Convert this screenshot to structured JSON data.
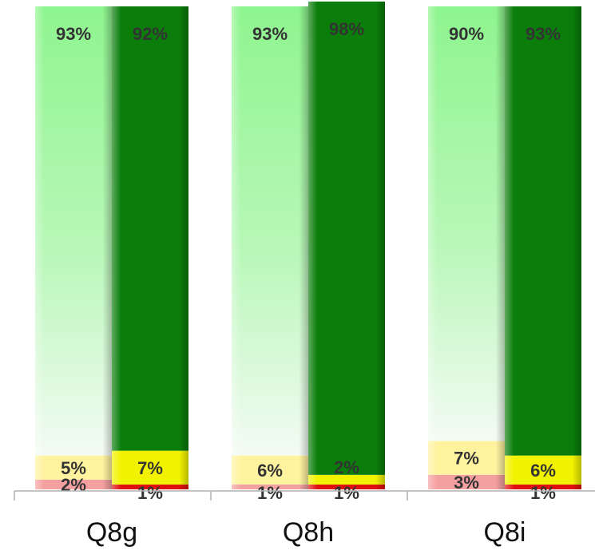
{
  "chart_data": {
    "type": "bar",
    "stacked": true,
    "percent_stacked": true,
    "categories": [
      "Q8g",
      "Q8h",
      "Q8i"
    ],
    "bars_per_category": 2,
    "series_order_bottom_to_top": [
      "low",
      "mid",
      "high"
    ],
    "bars": [
      {
        "category": "Q8g",
        "style": "light",
        "values": {
          "low": 2,
          "mid": 5,
          "high": 93
        },
        "labels": {
          "low": "2%",
          "mid": "5%",
          "high": "93%"
        }
      },
      {
        "category": "Q8g",
        "style": "dark",
        "values": {
          "low": 1,
          "mid": 7,
          "high": 92
        },
        "labels": {
          "low": "1%",
          "mid": "7%",
          "high": "92%"
        }
      },
      {
        "category": "Q8h",
        "style": "light",
        "values": {
          "low": 1,
          "mid": 6,
          "high": 93
        },
        "labels": {
          "low": "1%",
          "mid": "6%",
          "high": "93%"
        }
      },
      {
        "category": "Q8h",
        "style": "dark",
        "values": {
          "low": 1,
          "mid": 2,
          "high": 98
        },
        "labels": {
          "low": "1%",
          "mid": "2%",
          "high": "98%"
        }
      },
      {
        "category": "Q8i",
        "style": "light",
        "values": {
          "low": 3,
          "mid": 7,
          "high": 90
        },
        "labels": {
          "low": "3%",
          "mid": "7%",
          "high": "90%"
        }
      },
      {
        "category": "Q8i",
        "style": "dark",
        "values": {
          "low": 1,
          "mid": 6,
          "high": 93
        },
        "labels": {
          "low": "1%",
          "mid": "6%",
          "high": "93%"
        }
      }
    ],
    "ylim": [
      0,
      100
    ],
    "grid": false,
    "legend": "none",
    "colors": {
      "light": {
        "high": "#8ef58e",
        "mid": "#fff3a0",
        "low": "#f5a0a0"
      },
      "dark": {
        "high": "#0a7d0a",
        "mid": "#f2f200",
        "low": "#e01010"
      },
      "axis": "#b0b0b0"
    }
  }
}
